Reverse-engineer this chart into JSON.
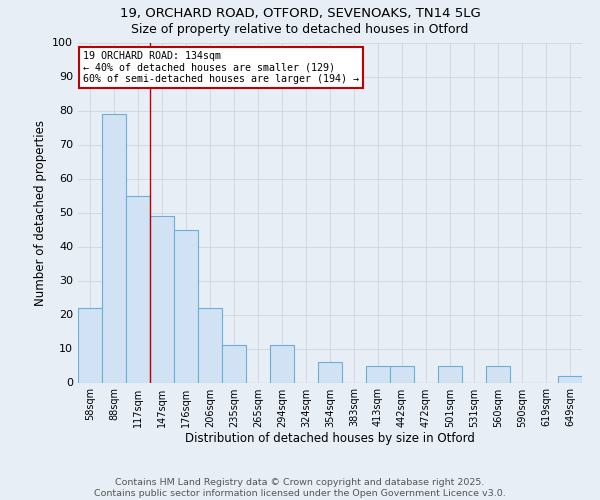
{
  "title_line1": "19, ORCHARD ROAD, OTFORD, SEVENOAKS, TN14 5LG",
  "title_line2": "Size of property relative to detached houses in Otford",
  "xlabel": "Distribution of detached houses by size in Otford",
  "ylabel": "Number of detached properties",
  "bar_labels": [
    "58sqm",
    "88sqm",
    "117sqm",
    "147sqm",
    "176sqm",
    "206sqm",
    "235sqm",
    "265sqm",
    "294sqm",
    "324sqm",
    "354sqm",
    "383sqm",
    "413sqm",
    "442sqm",
    "472sqm",
    "501sqm",
    "531sqm",
    "560sqm",
    "590sqm",
    "619sqm",
    "649sqm"
  ],
  "bar_values": [
    22,
    79,
    55,
    49,
    45,
    22,
    11,
    0,
    11,
    0,
    6,
    0,
    5,
    5,
    0,
    5,
    0,
    5,
    0,
    0,
    2
  ],
  "bar_color": "#d0e2f3",
  "bar_edge_color": "#6baed6",
  "vline_color": "#c00000",
  "vline_pos": 2.5,
  "annotation_text": "19 ORCHARD ROAD: 134sqm\n← 40% of detached houses are smaller (129)\n60% of semi-detached houses are larger (194) →",
  "annotation_box_facecolor": "#ffffff",
  "annotation_box_edgecolor": "#c00000",
  "ylim_max": 100,
  "yticks": [
    0,
    10,
    20,
    30,
    40,
    50,
    60,
    70,
    80,
    90,
    100
  ],
  "grid_color": "#c8d0dc",
  "background_color": "#e8eef6",
  "footer_line1": "Contains HM Land Registry data © Crown copyright and database right 2025.",
  "footer_line2": "Contains public sector information licensed under the Open Government Licence v3.0."
}
